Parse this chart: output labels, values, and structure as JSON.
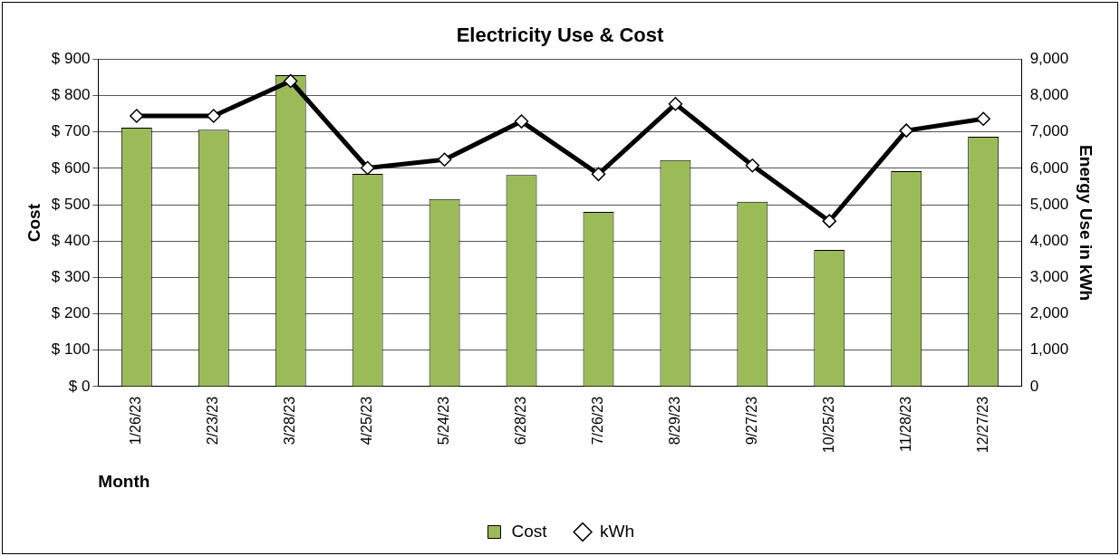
{
  "chart_data": {
    "type": "bar",
    "title": "Electricity Use & Cost",
    "xlabel": "Month",
    "ylabel": "Cost",
    "y2label": "Energy Use in kWh",
    "categories": [
      "1/26/23",
      "2/23/23",
      "3/28/23",
      "4/25/23",
      "5/24/23",
      "6/28/23",
      "7/26/23",
      "8/29/23",
      "9/27/23",
      "10/25/23",
      "11/28/23",
      "12/27/23"
    ],
    "series": [
      {
        "name": "Cost",
        "color": "#9bbb59",
        "values": [
          712,
          706,
          856,
          585,
          516,
          582,
          480,
          623,
          508,
          376,
          592,
          687
        ]
      },
      {
        "name": "kWh",
        "type": "line",
        "axis": "y2",
        "color": "#000000",
        "marker": "diamond",
        "values": [
          7440,
          7440,
          8400,
          6010,
          6240,
          7290,
          5840,
          7770,
          6080,
          4550,
          7040,
          7360
        ]
      }
    ],
    "ylim": [
      0,
      900
    ],
    "yticks": [
      {
        "value": 0,
        "label": "$ 0"
      },
      {
        "value": 100,
        "label": "$ 100"
      },
      {
        "value": 200,
        "label": "$ 200"
      },
      {
        "value": 300,
        "label": "$ 300"
      },
      {
        "value": 400,
        "label": "$ 400"
      },
      {
        "value": 500,
        "label": "$ 500"
      },
      {
        "value": 600,
        "label": "$ 600"
      },
      {
        "value": 700,
        "label": "$ 700"
      },
      {
        "value": 800,
        "label": "$ 800"
      },
      {
        "value": 900,
        "label": "$ 900"
      }
    ],
    "y2lim": [
      0,
      9000
    ],
    "y2ticks": [
      0,
      {
        "value": 1000,
        "label": "1,000"
      },
      {
        "value": 2000,
        "label": "2,000"
      },
      {
        "value": 3000,
        "label": "3,000"
      },
      {
        "value": 4000,
        "label": "4,000"
      },
      {
        "value": 5000,
        "label": "5,000"
      },
      {
        "value": 6000,
        "label": "6,000"
      },
      {
        "value": 7000,
        "label": "7,000"
      },
      {
        "value": 8000,
        "label": "8,000"
      },
      {
        "value": 9000,
        "label": "9,000"
      }
    ],
    "grid": "y",
    "legend": "bottom"
  }
}
